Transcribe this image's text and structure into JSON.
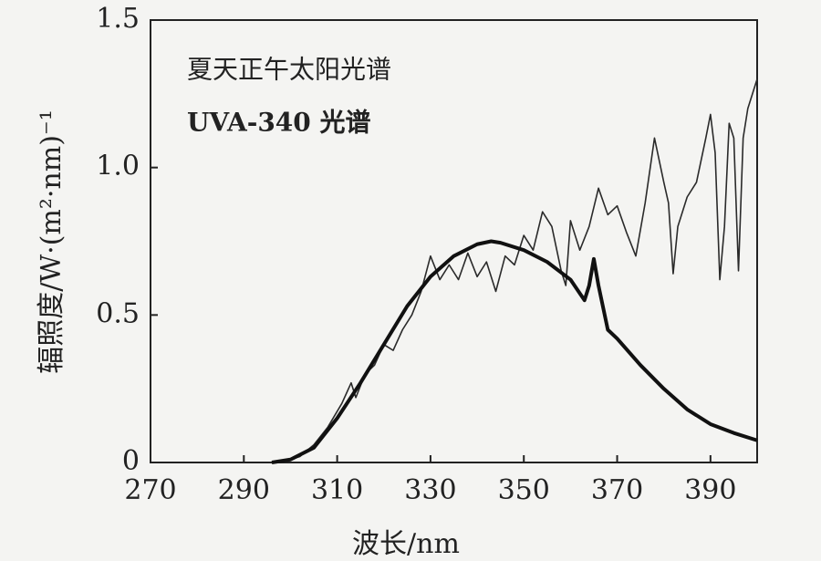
{
  "chart_data": {
    "type": "line",
    "xlabel": "波长/nm",
    "ylabel": "辐照度/W·(m²·nm)⁻¹",
    "xlim": [
      270,
      400
    ],
    "xticks": [
      270,
      290,
      310,
      330,
      350,
      370,
      390
    ],
    "ylim": [
      0,
      1.5
    ],
    "yticks": [
      0,
      0.5,
      {
        "value": 1,
        "label": "1.0"
      },
      1.5
    ],
    "grid": false,
    "series": [
      {
        "name": "夏天正午太阳光谱",
        "color": "#2a2a2a",
        "width": 1.6,
        "x": [
          298,
          302,
          305,
          308,
          311,
          313,
          314,
          316,
          318,
          320,
          322,
          324,
          326,
          328,
          330,
          332,
          334,
          336,
          338,
          340,
          342,
          344,
          346,
          348,
          350,
          352,
          354,
          356,
          358,
          359,
          360,
          362,
          364,
          366,
          368,
          370,
          372,
          374,
          376,
          378,
          380,
          381,
          382,
          383,
          385,
          387,
          389,
          390,
          391,
          392,
          393,
          394,
          395,
          396,
          397,
          398,
          400
        ],
        "values": [
          0,
          0.02,
          0.06,
          0.12,
          0.2,
          0.27,
          0.22,
          0.3,
          0.33,
          0.4,
          0.38,
          0.45,
          0.5,
          0.58,
          0.7,
          0.62,
          0.67,
          0.62,
          0.71,
          0.63,
          0.68,
          0.58,
          0.7,
          0.67,
          0.77,
          0.72,
          0.85,
          0.8,
          0.65,
          0.6,
          0.82,
          0.72,
          0.8,
          0.93,
          0.84,
          0.87,
          0.78,
          0.7,
          0.88,
          1.1,
          0.95,
          0.88,
          0.64,
          0.8,
          0.9,
          0.95,
          1.1,
          1.18,
          1.05,
          0.62,
          0.8,
          1.15,
          1.1,
          0.65,
          1.1,
          1.2,
          1.3
        ]
      },
      {
        "name": "UVA-340 光谱",
        "color": "#111111",
        "width": 4,
        "x": [
          296,
          300,
          305,
          310,
          315,
          320,
          325,
          330,
          335,
          340,
          343,
          345,
          350,
          355,
          360,
          363,
          364,
          365,
          366,
          368,
          370,
          375,
          380,
          385,
          390,
          395,
          400
        ],
        "values": [
          0,
          0.01,
          0.05,
          0.15,
          0.27,
          0.4,
          0.53,
          0.63,
          0.7,
          0.74,
          0.75,
          0.745,
          0.72,
          0.68,
          0.62,
          0.55,
          0.6,
          0.69,
          0.6,
          0.45,
          0.42,
          0.33,
          0.25,
          0.18,
          0.13,
          0.1,
          0.075
        ]
      }
    ]
  }
}
